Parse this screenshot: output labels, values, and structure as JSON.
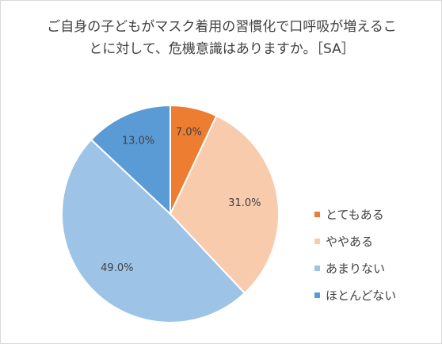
{
  "chart_data": {
    "type": "pie",
    "title_lines": [
      "ご自身の子どもがマスク着用の習慣化で口呼吸が増えるこ",
      "とに対して、危機意識はありますか。［SA］"
    ],
    "categories": [
      "とてもある",
      "ややある",
      "あまりない",
      "ほとんどない"
    ],
    "values": [
      7.0,
      31.0,
      49.0,
      13.0
    ],
    "data_labels": [
      "7.0%",
      "31.0%",
      "49.0%",
      "13.0%"
    ],
    "colors": [
      "#ed7d31",
      "#f8cbad",
      "#9dc3e6",
      "#5b9bd5"
    ],
    "legend_position": "right"
  }
}
